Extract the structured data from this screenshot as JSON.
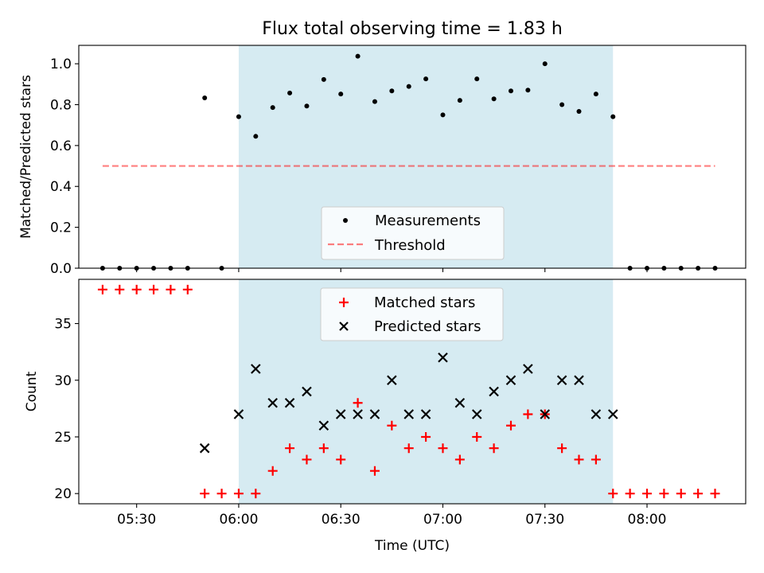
{
  "title": "Flux total observing time = 1.83 h",
  "colors": {
    "span": "#add8e6",
    "threshold": "#ff0000",
    "measurements": "#000000",
    "matched": "#ff0000",
    "predicted": "#000000"
  },
  "chart_data": [
    {
      "type": "scatter",
      "panel": "top",
      "ylabel": "Matched/Predicted stars",
      "ylim": [
        0,
        1.09
      ],
      "yticks": [
        0.0,
        0.2,
        0.4,
        0.6,
        0.8,
        1.0
      ],
      "ytick_labels": [
        "0.0",
        "0.2",
        "0.4",
        "0.6",
        "0.8",
        "1.0"
      ],
      "xlim": [
        "05:13",
        "08:29"
      ],
      "shaded_span": [
        "06:00",
        "07:50"
      ],
      "legend": {
        "position": "bottom-center",
        "entries": [
          "Measurements",
          "Threshold"
        ]
      },
      "series": [
        {
          "name": "Measurements",
          "marker": "dot",
          "points": [
            [
              "05:20",
              0.0
            ],
            [
              "05:25",
              0.0
            ],
            [
              "05:30",
              0.0
            ],
            [
              "05:35",
              0.0
            ],
            [
              "05:40",
              0.0
            ],
            [
              "05:45",
              0.0
            ],
            [
              "05:50",
              0.833
            ],
            [
              "05:55",
              0.0
            ],
            [
              "06:00",
              0.741
            ],
            [
              "06:05",
              0.645
            ],
            [
              "06:10",
              0.786
            ],
            [
              "06:15",
              0.857
            ],
            [
              "06:20",
              0.793
            ],
            [
              "06:25",
              0.923
            ],
            [
              "06:30",
              0.852
            ],
            [
              "06:35",
              1.037
            ],
            [
              "06:40",
              0.815
            ],
            [
              "06:45",
              0.867
            ],
            [
              "06:50",
              0.889
            ],
            [
              "06:55",
              0.926
            ],
            [
              "07:00",
              0.75
            ],
            [
              "07:05",
              0.821
            ],
            [
              "07:10",
              0.926
            ],
            [
              "07:15",
              0.828
            ],
            [
              "07:20",
              0.867
            ],
            [
              "07:25",
              0.871
            ],
            [
              "07:30",
              1.0
            ],
            [
              "07:35",
              0.8
            ],
            [
              "07:40",
              0.767
            ],
            [
              "07:45",
              0.852
            ],
            [
              "07:50",
              0.741
            ],
            [
              "07:55",
              0.0
            ],
            [
              "08:00",
              0.0
            ],
            [
              "08:05",
              0.0
            ],
            [
              "08:10",
              0.0
            ],
            [
              "08:15",
              0.0
            ],
            [
              "08:20",
              0.0
            ]
          ]
        },
        {
          "name": "Threshold",
          "marker": "dashed-line",
          "points": [
            [
              "05:20",
              0.5
            ],
            [
              "08:20",
              0.5
            ]
          ]
        }
      ]
    },
    {
      "type": "scatter",
      "panel": "bottom",
      "xlabel": "Time (UTC)",
      "ylabel": "Count",
      "ylim": [
        19.1,
        38.9
      ],
      "yticks": [
        20,
        25,
        30,
        35
      ],
      "ytick_labels": [
        "20",
        "25",
        "30",
        "35"
      ],
      "xlim": [
        "05:13",
        "08:29"
      ],
      "xticks": [
        "05:30",
        "06:00",
        "06:30",
        "07:00",
        "07:30",
        "08:00"
      ],
      "shaded_span": [
        "06:00",
        "07:50"
      ],
      "legend": {
        "position": "upper-center",
        "entries": [
          "Matched stars",
          "Predicted stars"
        ]
      },
      "series": [
        {
          "name": "Matched stars",
          "marker": "plus",
          "points": [
            [
              "05:20",
              38
            ],
            [
              "05:25",
              38
            ],
            [
              "05:30",
              38
            ],
            [
              "05:35",
              38
            ],
            [
              "05:40",
              38
            ],
            [
              "05:45",
              38
            ],
            [
              "05:50",
              20
            ],
            [
              "05:55",
              20
            ],
            [
              "06:00",
              20
            ],
            [
              "06:05",
              20
            ],
            [
              "06:10",
              22
            ],
            [
              "06:15",
              24
            ],
            [
              "06:20",
              23
            ],
            [
              "06:25",
              24
            ],
            [
              "06:30",
              23
            ],
            [
              "06:35",
              28
            ],
            [
              "06:40",
              22
            ],
            [
              "06:45",
              26
            ],
            [
              "06:50",
              24
            ],
            [
              "06:55",
              25
            ],
            [
              "07:00",
              24
            ],
            [
              "07:05",
              23
            ],
            [
              "07:10",
              25
            ],
            [
              "07:15",
              24
            ],
            [
              "07:20",
              26
            ],
            [
              "07:25",
              27
            ],
            [
              "07:30",
              27
            ],
            [
              "07:35",
              24
            ],
            [
              "07:40",
              23
            ],
            [
              "07:45",
              23
            ],
            [
              "07:50",
              20
            ],
            [
              "07:55",
              20
            ],
            [
              "08:00",
              20
            ],
            [
              "08:05",
              20
            ],
            [
              "08:10",
              20
            ],
            [
              "08:15",
              20
            ],
            [
              "08:20",
              20
            ]
          ]
        },
        {
          "name": "Predicted stars",
          "marker": "x",
          "points": [
            [
              "05:50",
              24
            ],
            [
              "06:00",
              27
            ],
            [
              "06:05",
              31
            ],
            [
              "06:10",
              28
            ],
            [
              "06:15",
              28
            ],
            [
              "06:20",
              29
            ],
            [
              "06:25",
              26
            ],
            [
              "06:30",
              27
            ],
            [
              "06:35",
              27
            ],
            [
              "06:40",
              27
            ],
            [
              "06:45",
              30
            ],
            [
              "06:50",
              27
            ],
            [
              "06:55",
              27
            ],
            [
              "07:00",
              32
            ],
            [
              "07:05",
              28
            ],
            [
              "07:10",
              27
            ],
            [
              "07:15",
              29
            ],
            [
              "07:20",
              30
            ],
            [
              "07:25",
              31
            ],
            [
              "07:30",
              27
            ],
            [
              "07:35",
              30
            ],
            [
              "07:40",
              30
            ],
            [
              "07:45",
              27
            ],
            [
              "07:50",
              27
            ]
          ]
        }
      ]
    }
  ]
}
